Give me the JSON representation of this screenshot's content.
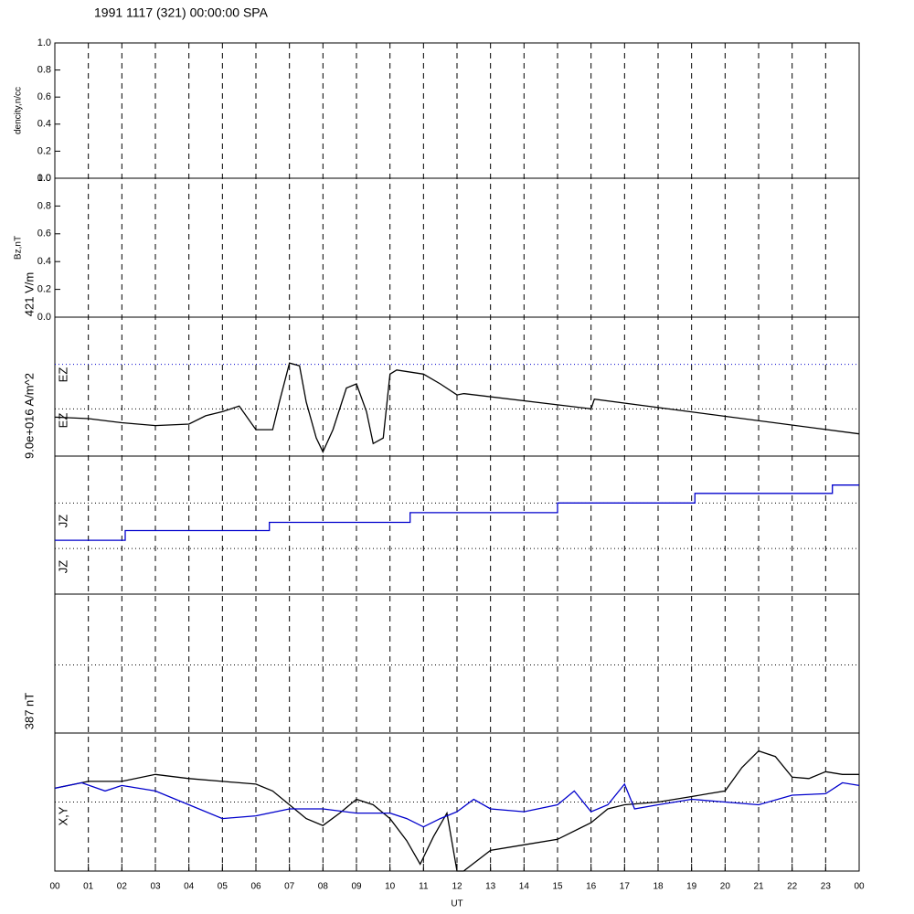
{
  "chart_data": {
    "type": "line",
    "title": "1991 1117 (321) 00:00:00 SPA",
    "x_label": "UT",
    "xlim": [
      0,
      24
    ],
    "xticks": [
      {
        "value": 0,
        "label": "00"
      },
      {
        "value": 1,
        "label": "01"
      },
      {
        "value": 2,
        "label": "02"
      },
      {
        "value": 3,
        "label": "03"
      },
      {
        "value": 4,
        "label": "04"
      },
      {
        "value": 5,
        "label": "05"
      },
      {
        "value": 6,
        "label": "06"
      },
      {
        "value": 7,
        "label": "07"
      },
      {
        "value": 8,
        "label": "08"
      },
      {
        "value": 9,
        "label": "09"
      },
      {
        "value": 10,
        "label": "10"
      },
      {
        "value": 11,
        "label": "11"
      },
      {
        "value": 12,
        "label": "12"
      },
      {
        "value": 13,
        "label": "13"
      },
      {
        "value": 14,
        "label": "14"
      },
      {
        "value": 15,
        "label": "15"
      },
      {
        "value": 16,
        "label": "16"
      },
      {
        "value": 17,
        "label": "17"
      },
      {
        "value": 18,
        "label": "18"
      },
      {
        "value": 19,
        "label": "19"
      },
      {
        "value": 20,
        "label": "20"
      },
      {
        "value": 21,
        "label": "21"
      },
      {
        "value": 22,
        "label": "22"
      },
      {
        "value": 23,
        "label": "23"
      },
      {
        "value": 24,
        "label": "00"
      }
    ],
    "side_labels": [
      "421 V/m",
      "EZ",
      "EZ",
      "9.0e+016 A/m^2",
      "JZ",
      "JZ",
      "387 nT",
      "X,Y"
    ],
    "panels": [
      {
        "ylabel": "dencity,n/cc",
        "ylim": [
          0,
          1
        ],
        "yticks": [
          {
            "value": 0,
            "label": "0.0"
          },
          0.2,
          0.4,
          0.6,
          0.8,
          {
            "value": 1,
            "label": "1.0"
          }
        ],
        "hlines": [],
        "series": []
      },
      {
        "ylabel": "Bz,nT",
        "ylim": [
          0,
          1
        ],
        "yticks": [
          {
            "value": 0,
            "label": "0.0"
          },
          0.2,
          0.4,
          0.6,
          0.8,
          {
            "value": 1,
            "label": "1.0"
          }
        ],
        "hlines": [],
        "series": []
      },
      {
        "ylim": [
          0,
          1
        ],
        "hlines": [
          {
            "value": 0.66,
            "color": "#0000cc"
          },
          {
            "value": 0.34,
            "color": "#000000"
          }
        ],
        "series": [
          {
            "color": "#000000",
            "x": [
              0,
              1,
              2,
              3,
              4,
              4.5,
              5,
              5.5,
              6,
              6.5,
              6.7,
              7,
              7.3,
              7.5,
              7.8,
              8,
              8.3,
              8.7,
              9,
              9.3,
              9.5,
              9.8,
              10,
              10.2,
              11,
              11.5,
              12,
              12.2,
              16,
              16.1,
              24
            ],
            "values": [
              0.28,
              0.27,
              0.24,
              0.22,
              0.23,
              0.29,
              0.32,
              0.36,
              0.19,
              0.19,
              0.39,
              0.67,
              0.65,
              0.39,
              0.13,
              0.03,
              0.19,
              0.49,
              0.52,
              0.32,
              0.09,
              0.13,
              0.59,
              0.62,
              0.59,
              0.52,
              0.44,
              0.45,
              0.34,
              0.41,
              0.16
            ]
          }
        ]
      },
      {
        "ylim": [
          0,
          1
        ],
        "hlines": [
          {
            "value": 0.66,
            "color": "#000000"
          },
          {
            "value": 0.33,
            "color": "#000000"
          }
        ],
        "series": [
          {
            "color": "#0000cc",
            "x": [
              0,
              2.1,
              2.1,
              6.4,
              6.4,
              10.6,
              10.6,
              15,
              15,
              19.1,
              19.1,
              23.2,
              23.2,
              24
            ],
            "values": [
              0.39,
              0.39,
              0.46,
              0.46,
              0.52,
              0.52,
              0.59,
              0.59,
              0.66,
              0.66,
              0.73,
              0.73,
              0.79,
              0.79
            ]
          }
        ]
      },
      {
        "ylim": [
          0,
          1
        ],
        "hlines": [
          {
            "value": 0.49,
            "color": "#000000"
          }
        ],
        "series": []
      },
      {
        "ylim": [
          0,
          1
        ],
        "hlines": [
          {
            "value": 0.5,
            "color": "#000000"
          }
        ],
        "series": [
          {
            "color": "#000000",
            "x": [
              0,
              1,
              2,
              3,
              4,
              5,
              6,
              6.5,
              7,
              7.5,
              8,
              8.5,
              9,
              9.5,
              10,
              10.5,
              10.9,
              11.3,
              11.7,
              12,
              12.2,
              13,
              14,
              15,
              16,
              16.5,
              17,
              18,
              19,
              19.5,
              20,
              20.5,
              21,
              21.5,
              22,
              22.5,
              23,
              23.5,
              24
            ],
            "values": [
              0.6,
              0.65,
              0.65,
              0.7,
              0.67,
              0.65,
              0.63,
              0.58,
              0.48,
              0.38,
              0.33,
              0.42,
              0.52,
              0.48,
              0.38,
              0.22,
              0.05,
              0.25,
              0.42,
              0,
              0,
              0.15,
              0.19,
              0.23,
              0.35,
              0.45,
              0.48,
              0.5,
              0.54,
              0.56,
              0.58,
              0.75,
              0.87,
              0.83,
              0.68,
              0.67,
              0.72,
              0.7,
              0.7
            ]
          },
          {
            "color": "#0000cc",
            "x": [
              0,
              0.8,
              1.5,
              2,
              3,
              4,
              5,
              6,
              7,
              8,
              9,
              10,
              10.5,
              11,
              11.5,
              12,
              12.5,
              13,
              14,
              15,
              15.5,
              16,
              16.5,
              17,
              17.3,
              18,
              19,
              20,
              21,
              22,
              23,
              23.5,
              24
            ],
            "values": [
              0.6,
              0.64,
              0.58,
              0.62,
              0.58,
              0.48,
              0.38,
              0.4,
              0.45,
              0.45,
              0.42,
              0.42,
              0.38,
              0.32,
              0.38,
              0.43,
              0.52,
              0.45,
              0.43,
              0.48,
              0.58,
              0.43,
              0.48,
              0.63,
              0.45,
              0.48,
              0.52,
              0.5,
              0.48,
              0.55,
              0.56,
              0.64,
              0.62
            ]
          }
        ]
      }
    ]
  }
}
